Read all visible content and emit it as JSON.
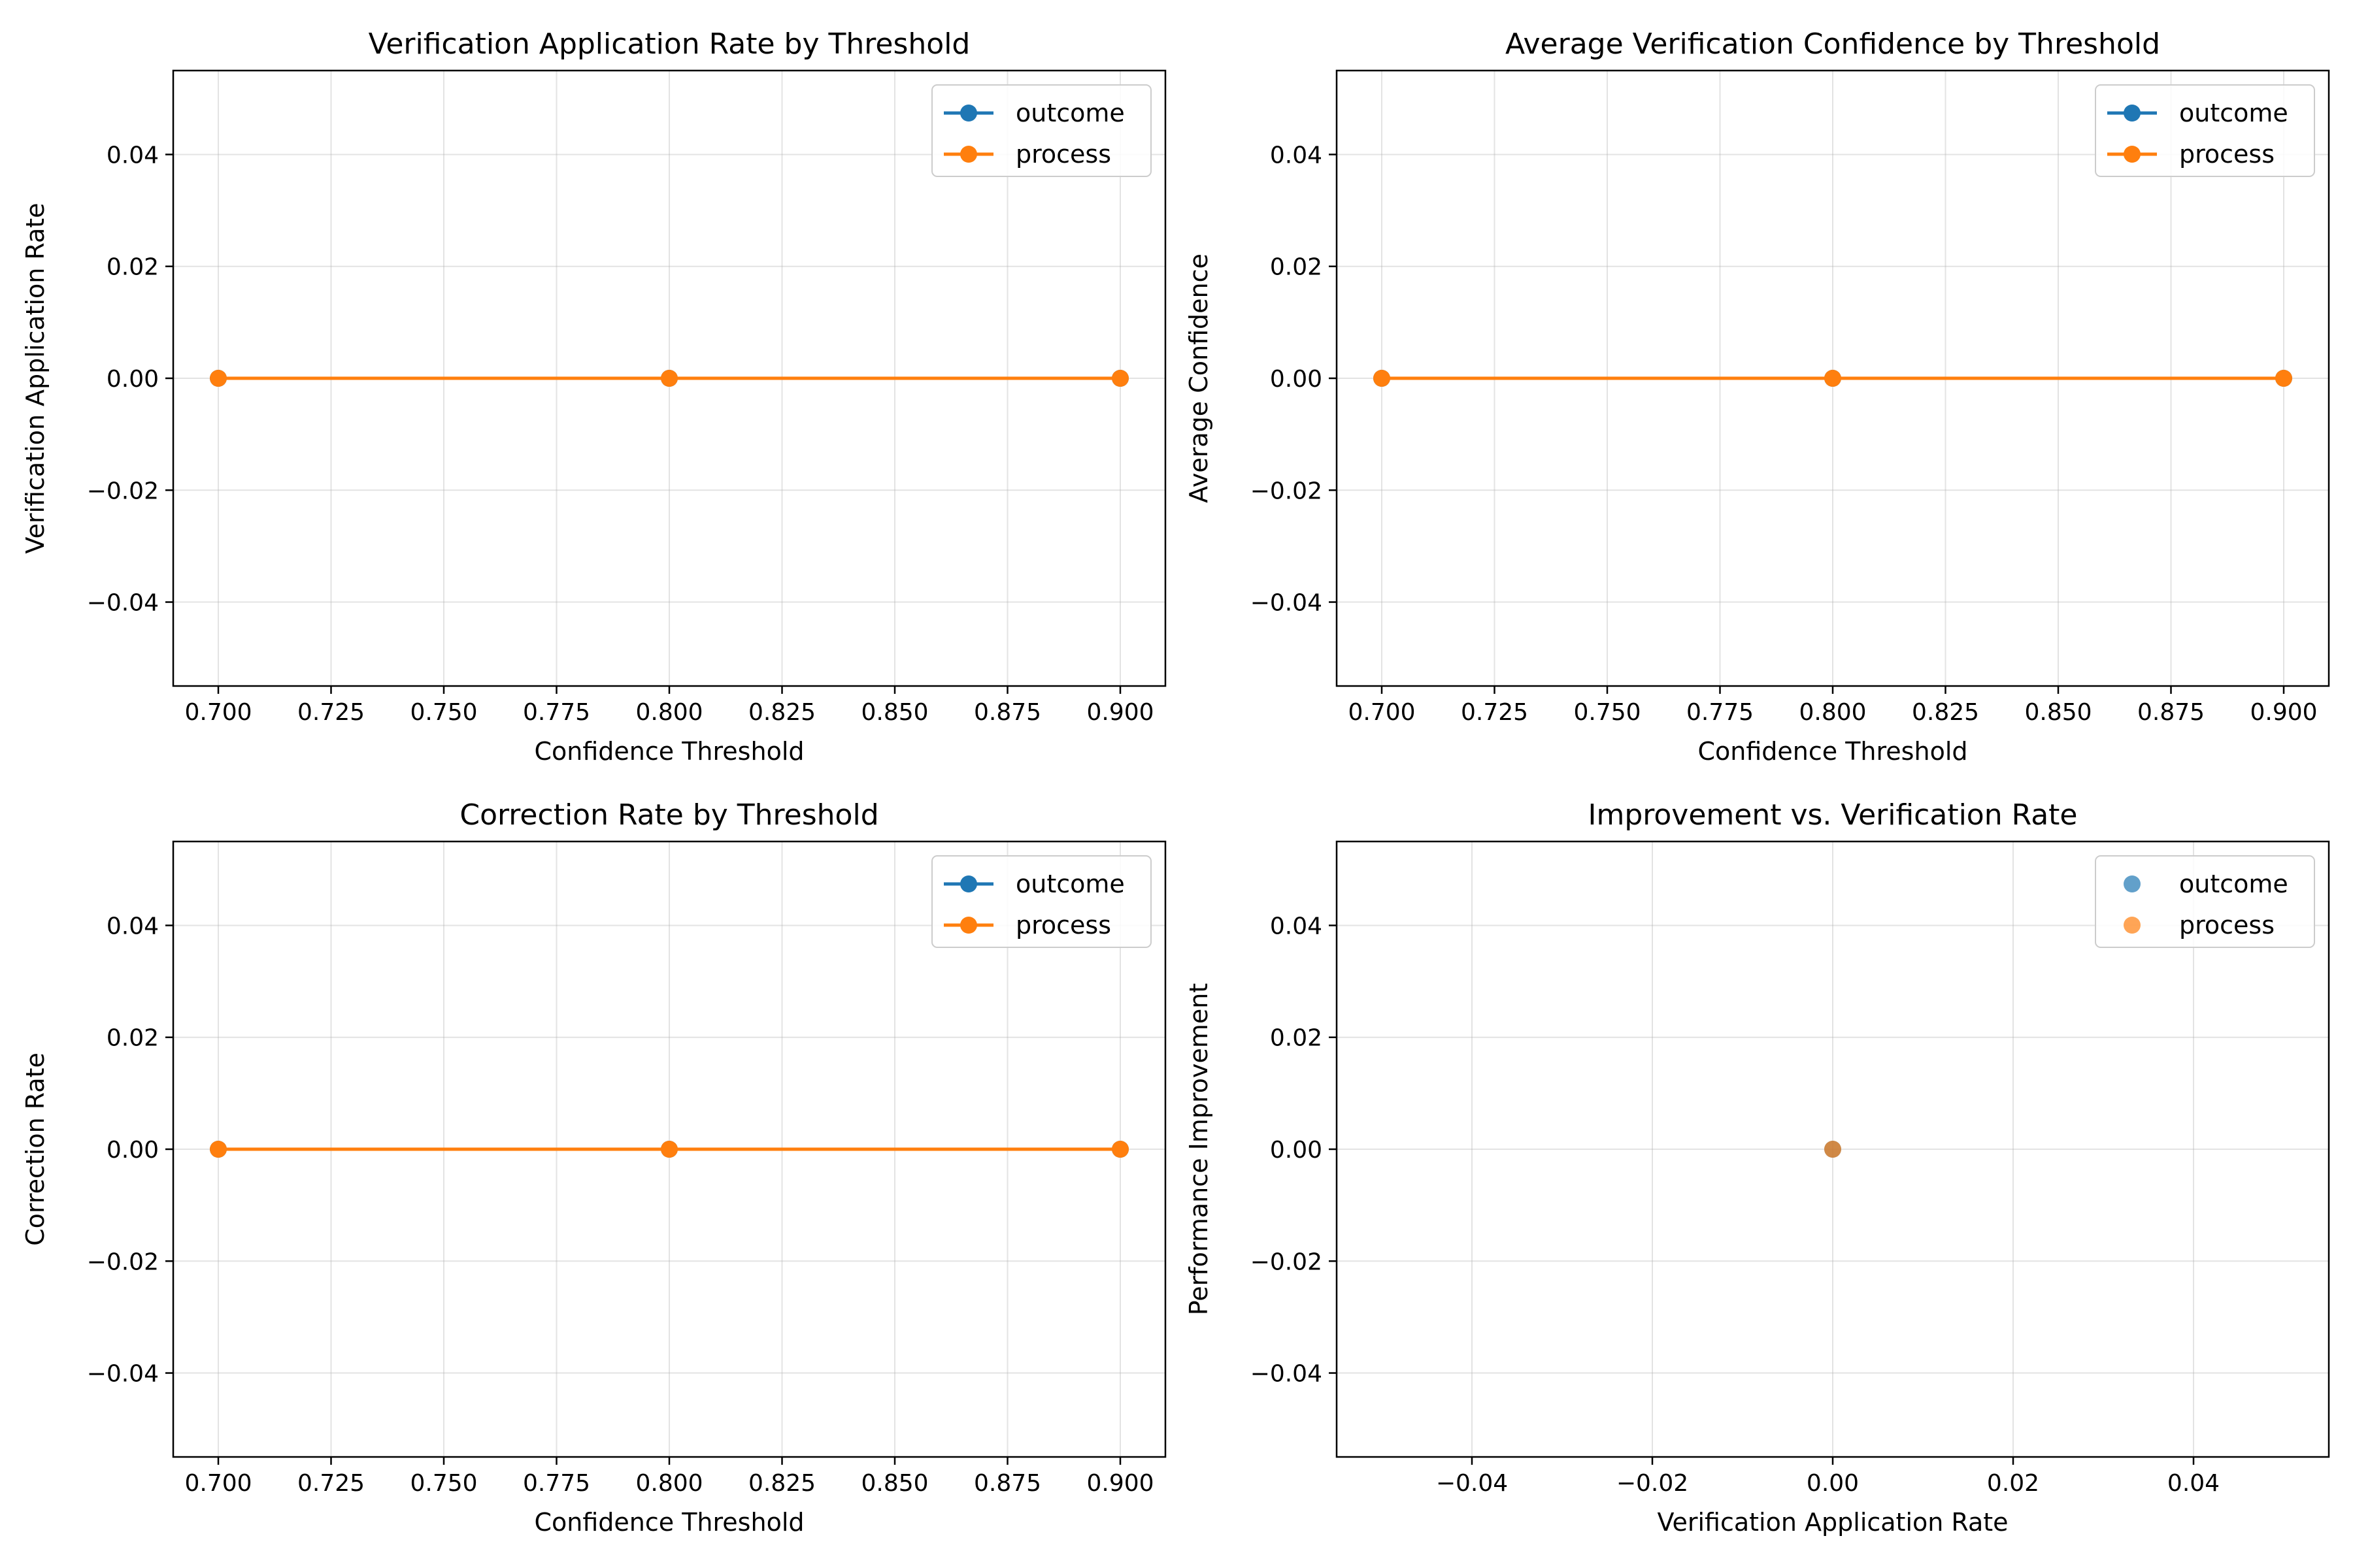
{
  "chart_data": [
    {
      "type": "line",
      "title": "Verification Application Rate by Threshold",
      "xlabel": "Confidence Threshold",
      "ylabel": "Verification Application Rate",
      "x": [
        0.7,
        0.8,
        0.9
      ],
      "series": [
        {
          "name": "outcome",
          "color": "#1f77b4",
          "y": [
            0,
            0,
            0
          ]
        },
        {
          "name": "process",
          "color": "#ff7f0e",
          "y": [
            0,
            0,
            0
          ]
        }
      ],
      "xlim": [
        0.69,
        0.91
      ],
      "ylim": [
        -0.055,
        0.055
      ],
      "xticks": [
        "0.700",
        "0.725",
        "0.750",
        "0.775",
        "0.800",
        "0.825",
        "0.850",
        "0.875",
        "0.900"
      ],
      "yticks": [
        "−0.04",
        "−0.02",
        "0.00",
        "0.02",
        "0.04"
      ],
      "grid": true,
      "legend": "top-right"
    },
    {
      "type": "line",
      "title": "Average Verification Confidence by Threshold",
      "xlabel": "Confidence Threshold",
      "ylabel": "Average Confidence",
      "x": [
        0.7,
        0.8,
        0.9
      ],
      "series": [
        {
          "name": "outcome",
          "color": "#1f77b4",
          "y": [
            0,
            0,
            0
          ]
        },
        {
          "name": "process",
          "color": "#ff7f0e",
          "y": [
            0,
            0,
            0
          ]
        }
      ],
      "xlim": [
        0.69,
        0.91
      ],
      "ylim": [
        -0.055,
        0.055
      ],
      "xticks": [
        "0.700",
        "0.725",
        "0.750",
        "0.775",
        "0.800",
        "0.825",
        "0.850",
        "0.875",
        "0.900"
      ],
      "yticks": [
        "−0.04",
        "−0.02",
        "0.00",
        "0.02",
        "0.04"
      ],
      "grid": true,
      "legend": "top-right"
    },
    {
      "type": "line",
      "title": "Correction Rate by Threshold",
      "xlabel": "Confidence Threshold",
      "ylabel": "Correction Rate",
      "x": [
        0.7,
        0.8,
        0.9
      ],
      "series": [
        {
          "name": "outcome",
          "color": "#1f77b4",
          "y": [
            0,
            0,
            0
          ]
        },
        {
          "name": "process",
          "color": "#ff7f0e",
          "y": [
            0,
            0,
            0
          ]
        }
      ],
      "xlim": [
        0.69,
        0.91
      ],
      "ylim": [
        -0.055,
        0.055
      ],
      "xticks": [
        "0.700",
        "0.725",
        "0.750",
        "0.775",
        "0.800",
        "0.825",
        "0.850",
        "0.875",
        "0.900"
      ],
      "yticks": [
        "−0.04",
        "−0.02",
        "0.00",
        "0.02",
        "0.04"
      ],
      "grid": true,
      "legend": "top-right"
    },
    {
      "type": "scatter",
      "title": "Improvement vs. Verification Rate",
      "xlabel": "Verification Application Rate",
      "ylabel": "Performance Improvement",
      "series": [
        {
          "name": "outcome",
          "color": "#1f77b4",
          "points": [
            [
              0,
              0
            ]
          ]
        },
        {
          "name": "process",
          "color": "#ff7f0e",
          "points": [
            [
              0,
              0
            ]
          ]
        }
      ],
      "xlim": [
        -0.055,
        0.055
      ],
      "ylim": [
        -0.055,
        0.055
      ],
      "xticks": [
        "−0.04",
        "−0.02",
        "0.00",
        "0.02",
        "0.04"
      ],
      "yticks": [
        "−0.04",
        "−0.02",
        "0.00",
        "0.02",
        "0.04"
      ],
      "grid": true,
      "legend": "top-right"
    }
  ]
}
